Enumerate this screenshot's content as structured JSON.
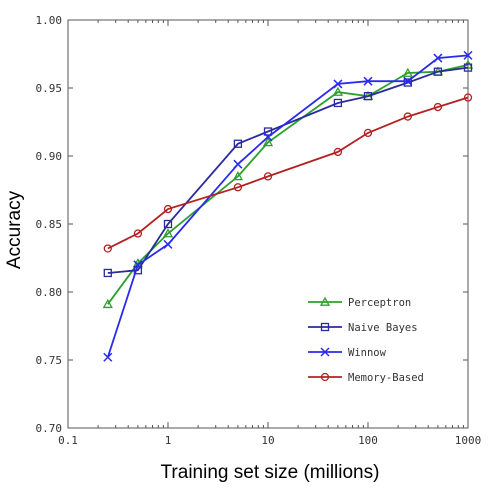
{
  "chart_data": {
    "type": "line",
    "title": "",
    "xlabel": "Training set size (millions)",
    "ylabel": "Accuracy",
    "xscale": "log",
    "xlim": [
      0.1,
      1000
    ],
    "ylim": [
      0.7,
      1.0
    ],
    "x_ticks": [
      0.1,
      1,
      10,
      100,
      1000
    ],
    "x_tick_labels": [
      "0.1",
      "1",
      "10",
      "100",
      "1000"
    ],
    "y_ticks": [
      0.7,
      0.75,
      0.8,
      0.85,
      0.9,
      0.95,
      1.0
    ],
    "y_tick_labels": [
      "0.70",
      "0.75",
      "0.80",
      "0.85",
      "0.90",
      "0.95",
      "1.00"
    ],
    "grid": false,
    "legend_position": "lower-right",
    "series": [
      {
        "name": "Perceptron",
        "color": "#2ca02c",
        "marker": "triangle",
        "x": [
          0.25,
          0.5,
          1,
          5,
          10,
          50,
          100,
          250,
          500,
          1000
        ],
        "y": [
          0.791,
          0.821,
          0.843,
          0.885,
          0.91,
          0.947,
          0.944,
          0.961,
          0.962,
          0.967
        ]
      },
      {
        "name": "Naive Bayes",
        "color": "#2b2b9b",
        "marker": "square",
        "x": [
          0.25,
          0.5,
          1,
          5,
          10,
          50,
          100,
          250,
          500,
          1000
        ],
        "y": [
          0.814,
          0.816,
          0.85,
          0.909,
          0.918,
          0.939,
          0.944,
          0.954,
          0.962,
          0.965
        ]
      },
      {
        "name": "Winnow",
        "color": "#2a2aee",
        "marker": "x",
        "x": [
          0.25,
          0.5,
          1,
          5,
          10,
          50,
          100,
          250,
          500,
          1000
        ],
        "y": [
          0.752,
          0.82,
          0.835,
          0.894,
          0.914,
          0.953,
          0.955,
          0.955,
          0.972,
          0.974
        ]
      },
      {
        "name": "Memory-Based",
        "color": "#b22222",
        "marker": "circle",
        "x": [
          0.25,
          0.5,
          1,
          5,
          10,
          50,
          100,
          250,
          500,
          1000
        ],
        "y": [
          0.832,
          0.843,
          0.861,
          0.877,
          0.885,
          0.903,
          0.917,
          0.929,
          0.936,
          0.943
        ]
      }
    ]
  }
}
